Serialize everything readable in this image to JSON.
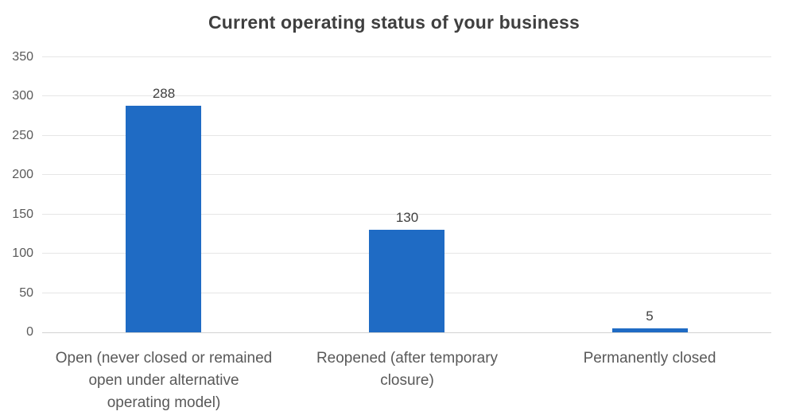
{
  "chart_data": {
    "type": "bar",
    "title": "Current operating status of your business",
    "categories": [
      "Open (never closed or remained\nopen under alternative\noperating model)",
      "Reopened (after temporary\nclosure)",
      "Permanently closed"
    ],
    "values": [
      288,
      130,
      5
    ],
    "data_labels": [
      "288",
      "130",
      "5"
    ],
    "xlabel": "",
    "ylabel": "",
    "yticks": [
      0,
      50,
      100,
      150,
      200,
      250,
      300,
      350
    ],
    "ylim": [
      0,
      350
    ],
    "grid": true,
    "legend": null,
    "bar_color": "#1f6bc4",
    "colors": {
      "title_text": "#3f3f3f",
      "data_label_text": "#404040",
      "axis_text": "#595959",
      "gridline": "#e6e6e6",
      "axis_line": "#d2d2d2",
      "background": "#ffffff"
    }
  }
}
